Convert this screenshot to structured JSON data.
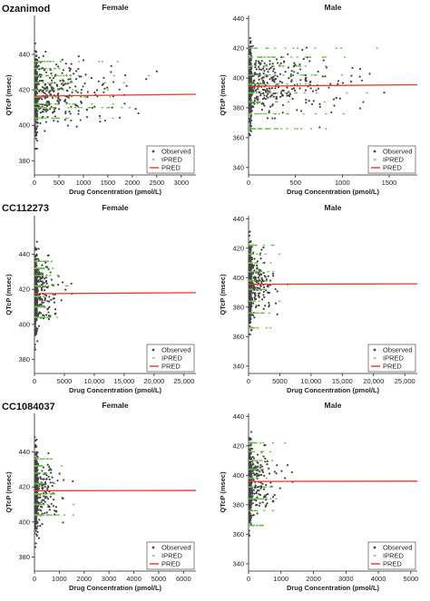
{
  "figure": {
    "rows": [
      {
        "label": "Ozanimod"
      },
      {
        "label": "CC112273"
      },
      {
        "label": "CC1084037"
      }
    ]
  },
  "colors": {
    "observed": "#444444",
    "ipred": "#66bb44",
    "pred": "#e8392c",
    "axis": "#222222"
  },
  "legend": [
    "Observed",
    "IPRED",
    "PRED"
  ],
  "chart_data": [
    {
      "type": "scatter",
      "drug": "Ozanimod",
      "title": "Female",
      "xlabel": "Drug Concentration (pmol/L)",
      "ylabel": "QTcP (msec)",
      "xlim": [
        0,
        3300
      ],
      "ylim": [
        372,
        462
      ],
      "xticks": [
        0,
        500,
        1000,
        1500,
        2000,
        2500,
        3000
      ],
      "xtick_labels": [
        "0",
        "500",
        "1000",
        "1500",
        "2000",
        "2500",
        "3000"
      ],
      "yticks": [
        380,
        400,
        420,
        440
      ],
      "ytick_labels": [
        "380",
        "400",
        "420",
        "440"
      ],
      "pred": {
        "intercept": 416.5,
        "slope_per_xmax": 1.0
      },
      "obs_dist": {
        "x_range": [
          0,
          3300
        ],
        "near_zero_frac": 0.42,
        "x_scale": 550,
        "y_center": 418,
        "y_spread": 15,
        "n": 520
      },
      "ipred_levels": [
        404,
        410,
        412,
        416,
        420,
        424,
        428,
        432,
        436
      ],
      "legend": [
        "Observed",
        "IPRED",
        "PRED"
      ]
    },
    {
      "type": "scatter",
      "drug": "Ozanimod",
      "title": "Male",
      "xlabel": "Drug Concentration (pmol/L)",
      "ylabel": "QTcP (msec)",
      "xlim": [
        0,
        1800
      ],
      "ylim": [
        335,
        442
      ],
      "xticks": [
        0,
        500,
        1000,
        1500
      ],
      "xtick_labels": [
        "0",
        "500",
        "1000",
        "1500"
      ],
      "yticks": [
        340,
        360,
        380,
        400,
        420,
        440
      ],
      "ytick_labels": [
        "340",
        "360",
        "380",
        "400",
        "420",
        "440"
      ],
      "pred": {
        "intercept": 394.5,
        "slope_per_xmax": 1.0
      },
      "obs_dist": {
        "x_range": [
          0,
          1800
        ],
        "near_zero_frac": 0.42,
        "x_scale": 330,
        "y_center": 396,
        "y_spread": 16,
        "n": 560
      },
      "ipred_levels": [
        366,
        376,
        384,
        390,
        396,
        402,
        408,
        414,
        420
      ],
      "legend": [
        "Observed",
        "IPRED",
        "PRED"
      ]
    },
    {
      "type": "scatter",
      "drug": "CC112273",
      "title": "Female",
      "xlabel": "Drug Concentration (pmol/L)",
      "ylabel": "QTcP (msec)",
      "xlim": [
        0,
        27000
      ],
      "ylim": [
        372,
        462
      ],
      "xticks": [
        0,
        5000,
        10000,
        15000,
        20000,
        25000
      ],
      "xtick_labels": [
        "0",
        "5000",
        "10,000",
        "15,000",
        "20,000",
        "25,000"
      ],
      "yticks": [
        380,
        400,
        420,
        440
      ],
      "ytick_labels": [
        "380",
        "400",
        "420",
        "440"
      ],
      "pred": {
        "intercept": 417.5,
        "slope_per_xmax": 0.6
      },
      "obs_dist": {
        "x_range": [
          0,
          27000
        ],
        "near_zero_frac": 0.58,
        "x_scale": 1200,
        "y_center": 418,
        "y_spread": 14,
        "n": 520
      },
      "ipred_levels": [
        404,
        410,
        416,
        422,
        428,
        432,
        436
      ],
      "legend": [
        "Observed",
        "IPRED",
        "PRED"
      ]
    },
    {
      "type": "scatter",
      "drug": "CC112273",
      "title": "Male",
      "xlabel": "Drug Concentration (pmol/L)",
      "ylabel": "QTcP (msec)",
      "xlim": [
        0,
        27000
      ],
      "ylim": [
        335,
        442
      ],
      "xticks": [
        0,
        5000,
        10000,
        15000,
        20000,
        25000
      ],
      "xtick_labels": [
        "0",
        "5000",
        "10,000",
        "15,000",
        "20,000",
        "25,000"
      ],
      "yticks": [
        340,
        360,
        380,
        400,
        420,
        440
      ],
      "ytick_labels": [
        "340",
        "360",
        "380",
        "400",
        "420",
        "440"
      ],
      "pred": {
        "intercept": 395.5,
        "slope_per_xmax": 0.3
      },
      "obs_dist": {
        "x_range": [
          0,
          27000
        ],
        "near_zero_frac": 0.58,
        "x_scale": 1200,
        "y_center": 396,
        "y_spread": 16,
        "n": 560
      },
      "ipred_levels": [
        366,
        376,
        384,
        392,
        398,
        404,
        410,
        416,
        422
      ],
      "legend": [
        "Observed",
        "IPRED",
        "PRED"
      ]
    },
    {
      "type": "scatter",
      "drug": "CC1084037",
      "title": "Female",
      "xlabel": "Drug Concentration (pmol/L)",
      "ylabel": "QTcP (msec)",
      "xlim": [
        0,
        6500
      ],
      "ylim": [
        372,
        462
      ],
      "xticks": [
        0,
        1000,
        2000,
        3000,
        4000,
        5000,
        6000
      ],
      "xtick_labels": [
        "0",
        "1000",
        "2000",
        "3000",
        "4000",
        "5000",
        "6000"
      ],
      "yticks": [
        380,
        400,
        420,
        440
      ],
      "ytick_labels": [
        "380",
        "400",
        "420",
        "440"
      ],
      "pred": {
        "intercept": 417.8,
        "slope_per_xmax": 0.2
      },
      "obs_dist": {
        "x_range": [
          0,
          6500
        ],
        "near_zero_frac": 0.6,
        "x_scale": 300,
        "y_center": 418,
        "y_spread": 14,
        "n": 520
      },
      "ipred_levels": [
        404,
        410,
        416,
        422,
        428,
        432,
        436
      ],
      "legend": [
        "Observed",
        "IPRED",
        "PRED"
      ]
    },
    {
      "type": "scatter",
      "drug": "CC1084037",
      "title": "Male",
      "xlabel": "Drug Concentration (pmol/L)",
      "ylabel": "QTcP (msec)",
      "xlim": [
        0,
        5200
      ],
      "ylim": [
        335,
        442
      ],
      "xticks": [
        0,
        1000,
        2000,
        3000,
        4000,
        5000
      ],
      "xtick_labels": [
        "0",
        "1000",
        "2000",
        "3000",
        "4000",
        "5000"
      ],
      "yticks": [
        340,
        360,
        380,
        400,
        420,
        440
      ],
      "ytick_labels": [
        "340",
        "360",
        "380",
        "400",
        "420",
        "440"
      ],
      "pred": {
        "intercept": 395.8,
        "slope_per_xmax": 0.2
      },
      "obs_dist": {
        "x_range": [
          0,
          5200
        ],
        "near_zero_frac": 0.6,
        "x_scale": 260,
        "y_center": 396,
        "y_spread": 16,
        "n": 560
      },
      "ipred_levels": [
        366,
        376,
        384,
        392,
        398,
        404,
        410,
        416,
        422
      ],
      "legend": [
        "Observed",
        "IPRED",
        "PRED"
      ]
    }
  ]
}
